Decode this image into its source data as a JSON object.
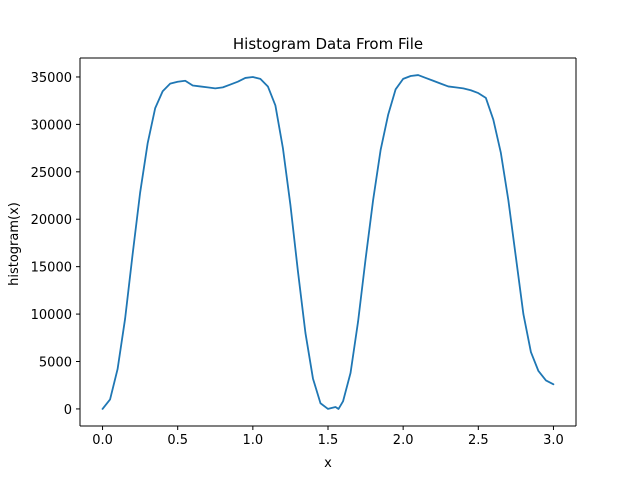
{
  "chart_data": {
    "type": "line",
    "title": "Histogram Data From File",
    "xlabel": "x",
    "ylabel": "histogram(x)",
    "xlim": [
      -0.15,
      3.15
    ],
    "ylim": [
      -1800,
      37000
    ],
    "xticks": [
      0.0,
      0.5,
      1.0,
      1.5,
      2.0,
      2.5,
      3.0
    ],
    "xtick_labels": [
      "0.0",
      "0.5",
      "1.0",
      "1.5",
      "2.0",
      "2.5",
      "3.0"
    ],
    "yticks": [
      0,
      5000,
      10000,
      15000,
      20000,
      25000,
      30000,
      35000
    ],
    "ytick_labels": [
      "0",
      "5000",
      "10000",
      "15000",
      "20000",
      "25000",
      "30000",
      "35000"
    ],
    "grid": false,
    "series": [
      {
        "color": "#1f77b4",
        "x": [
          0.0,
          0.05,
          0.1,
          0.15,
          0.2,
          0.25,
          0.3,
          0.35,
          0.4,
          0.45,
          0.5,
          0.55,
          0.6,
          0.65,
          0.7,
          0.75,
          0.8,
          0.85,
          0.9,
          0.95,
          1.0,
          1.05,
          1.1,
          1.15,
          1.2,
          1.25,
          1.3,
          1.35,
          1.4,
          1.45,
          1.5,
          1.55,
          1.57,
          1.6,
          1.65,
          1.7,
          1.75,
          1.8,
          1.85,
          1.9,
          1.95,
          2.0,
          2.05,
          2.1,
          2.15,
          2.2,
          2.25,
          2.3,
          2.35,
          2.4,
          2.45,
          2.5,
          2.55,
          2.6,
          2.65,
          2.7,
          2.75,
          2.8,
          2.85,
          2.9,
          2.95,
          3.0
        ],
        "y": [
          0,
          1000,
          4200,
          9500,
          16300,
          22800,
          28000,
          31700,
          33500,
          34300,
          34500,
          34600,
          34100,
          34000,
          33900,
          33800,
          33900,
          34200,
          34500,
          34900,
          35000,
          34800,
          34000,
          32000,
          27500,
          21500,
          14500,
          8000,
          3200,
          600,
          0,
          200,
          0,
          800,
          3800,
          9200,
          15800,
          22000,
          27300,
          31000,
          33700,
          34800,
          35100,
          35200,
          34900,
          34600,
          34300,
          34000,
          33900,
          33800,
          33600,
          33300,
          32800,
          30500,
          27000,
          22000,
          16000,
          10000,
          6000,
          4000,
          3000,
          2600
        ]
      }
    ]
  }
}
